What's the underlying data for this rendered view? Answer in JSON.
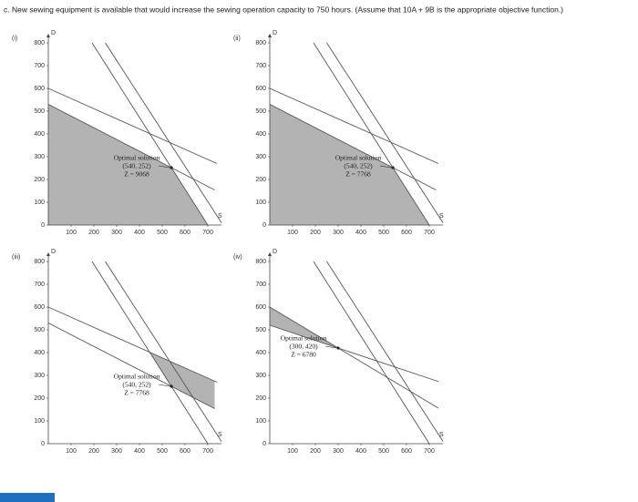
{
  "header": {
    "question": "c. New sewing equipment is available that would increase the sewing operation capacity to 750 hours. (Assume that 10A + 9B is the appropriate objective function.)"
  },
  "chart_data": [
    {
      "type": "line",
      "panel": "(i)",
      "y_label": "D",
      "x_label": "S",
      "xlim": [
        0,
        760
      ],
      "ylim": [
        0,
        820
      ],
      "xticks": [
        100,
        200,
        300,
        400,
        500,
        600,
        700
      ],
      "yticks": [
        0,
        100,
        200,
        300,
        400,
        500,
        600,
        700,
        800
      ],
      "series": [
        {
          "color": "#555555",
          "x": [
            192,
            700
          ],
          "values": [
            800,
            0
          ]
        },
        {
          "color": "#555555",
          "x": [
            250,
            760
          ],
          "values": [
            800,
            10
          ]
        },
        {
          "color": "#555555",
          "x": [
            0,
            730
          ],
          "values": [
            530,
            154
          ]
        },
        {
          "color": "#555555",
          "x": [
            0,
            740
          ],
          "values": [
            600,
            270
          ]
        }
      ],
      "region": {
        "color": "#b3b3b3",
        "x": [
          0,
          0,
          540,
          700
        ],
        "values": [
          0,
          530,
          252,
          0
        ]
      },
      "annotation": {
        "lines": [
          "Optimal solution",
          "(540, 252)",
          "Z = 9068"
        ],
        "x": 540,
        "y": 252
      }
    },
    {
      "type": "line",
      "panel": "(ii)",
      "y_label": "D",
      "x_label": "S",
      "xlim": [
        0,
        760
      ],
      "ylim": [
        0,
        820
      ],
      "xticks": [
        100,
        200,
        300,
        400,
        500,
        600,
        700
      ],
      "yticks": [
        0,
        100,
        200,
        300,
        400,
        500,
        600,
        700,
        800
      ],
      "series": [
        {
          "color": "#555555",
          "x": [
            192,
            700
          ],
          "values": [
            800,
            0
          ]
        },
        {
          "color": "#555555",
          "x": [
            250,
            760
          ],
          "values": [
            800,
            10
          ]
        },
        {
          "color": "#555555",
          "x": [
            0,
            730
          ],
          "values": [
            530,
            154
          ]
        },
        {
          "color": "#555555",
          "x": [
            0,
            740
          ],
          "values": [
            600,
            270
          ]
        }
      ],
      "region": {
        "color": "#b3b3b3",
        "x": [
          0,
          0,
          540,
          700
        ],
        "values": [
          0,
          530,
          252,
          0
        ]
      },
      "annotation": {
        "lines": [
          "Optimal solution",
          "(540, 252)",
          "Z = 7768"
        ],
        "x": 540,
        "y": 252
      }
    },
    {
      "type": "line",
      "panel": "(iii)",
      "y_label": "D",
      "x_label": "S",
      "xlim": [
        0,
        760
      ],
      "ylim": [
        0,
        820
      ],
      "xticks": [
        100,
        200,
        300,
        400,
        500,
        600,
        700
      ],
      "yticks": [
        0,
        100,
        200,
        300,
        400,
        500,
        600,
        700,
        800
      ],
      "series": [
        {
          "color": "#555555",
          "x": [
            192,
            700
          ],
          "values": [
            800,
            0
          ]
        },
        {
          "color": "#555555",
          "x": [
            250,
            760
          ],
          "values": [
            800,
            10
          ]
        },
        {
          "color": "#555555",
          "x": [
            0,
            730
          ],
          "values": [
            530,
            154
          ]
        },
        {
          "color": "#555555",
          "x": [
            0,
            740
          ],
          "values": [
            600,
            270
          ]
        }
      ],
      "region": {
        "color": "#b3b3b3",
        "x": [
          445,
          730,
          730,
          540
        ],
        "values": [
          401,
          274,
          154,
          252
        ]
      },
      "annotation": {
        "lines": [
          "Optimal solution",
          "(540, 252)",
          "Z = 7768"
        ],
        "x": 540,
        "y": 252
      }
    },
    {
      "type": "line",
      "panel": "(iv)",
      "y_label": "D",
      "x_label": "S",
      "xlim": [
        0,
        760
      ],
      "ylim": [
        0,
        820
      ],
      "xticks": [
        100,
        200,
        300,
        400,
        500,
        600,
        700
      ],
      "yticks": [
        0,
        100,
        200,
        300,
        400,
        500,
        600,
        700,
        800
      ],
      "series": [
        {
          "color": "#555555",
          "x": [
            192,
            700
          ],
          "values": [
            800,
            0
          ]
        },
        {
          "color": "#555555",
          "x": [
            250,
            760
          ],
          "values": [
            800,
            10
          ]
        },
        {
          "color": "#555555",
          "x": [
            0,
            740
          ],
          "values": [
            600,
            156
          ]
        },
        {
          "color": "#555555",
          "x": [
            0,
            740
          ],
          "values": [
            520,
            273
          ]
        }
      ],
      "region": {
        "color": "#b3b3b3",
        "x": [
          0,
          0,
          300
        ],
        "values": [
          600,
          520,
          420
        ]
      },
      "annotation": {
        "lines": [
          "Optimal solution",
          "(300, 420)",
          "Z = 6780"
        ],
        "x": 300,
        "y": 420
      }
    }
  ]
}
